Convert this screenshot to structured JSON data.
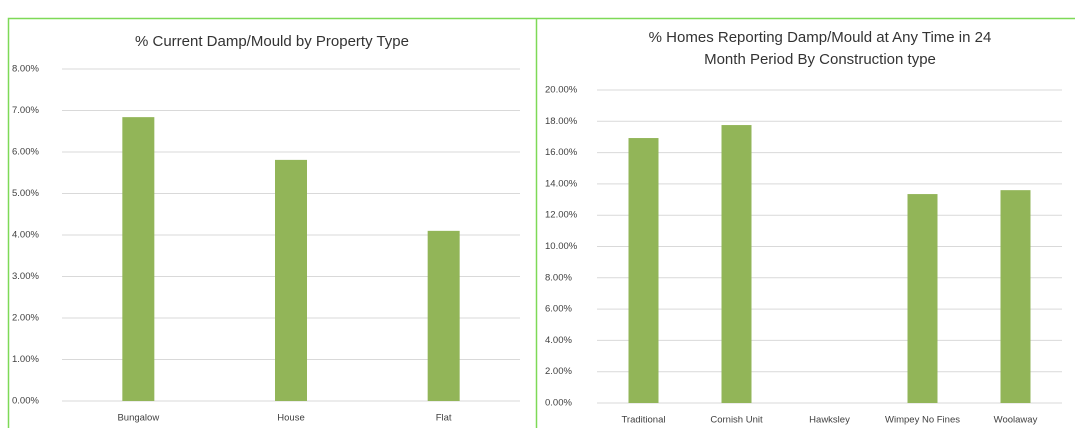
{
  "chart_data": [
    {
      "type": "bar",
      "title": "% Current Damp/Mould by Property Type",
      "categories": [
        "Bungalow",
        "House",
        "Flat"
      ],
      "values": [
        6.84,
        5.81,
        4.1
      ],
      "color": "#92b558",
      "ylim": [
        0,
        8
      ],
      "yticks": [
        {
          "value": 0,
          "label": "0.00%"
        },
        {
          "value": 1,
          "label": "1.00%"
        },
        {
          "value": 2,
          "label": "2.00%"
        },
        {
          "value": 3,
          "label": "3.00%"
        },
        {
          "value": 4,
          "label": "4.00%"
        },
        {
          "value": 5,
          "label": "5.00%"
        },
        {
          "value": 6,
          "label": "6.00%"
        },
        {
          "value": 7,
          "label": "7.00%"
        },
        {
          "value": 8,
          "label": "8.00%"
        }
      ],
      "grid": true
    },
    {
      "type": "bar",
      "title": [
        "% Homes Reporting Damp/Mould at Any Time in 24",
        "Month Period By Construction type"
      ],
      "categories": [
        "Traditional",
        "Cornish Unit",
        "Hawksley",
        "Wimpey No Fines",
        "Woolaway"
      ],
      "values": [
        16.93,
        17.76,
        0,
        13.35,
        13.6
      ],
      "color": "#92b558",
      "ylim": [
        0,
        20
      ],
      "yticks": [
        {
          "value": 0,
          "label": "0.00%"
        },
        {
          "value": 2,
          "label": "2.00%"
        },
        {
          "value": 4,
          "label": "4.00%"
        },
        {
          "value": 6,
          "label": "6.00%"
        },
        {
          "value": 8,
          "label": "8.00%"
        },
        {
          "value": 10,
          "label": "10.00%"
        },
        {
          "value": 12,
          "label": "12.00%"
        },
        {
          "value": 14,
          "label": "14.00%"
        },
        {
          "value": 16,
          "label": "16.00%"
        },
        {
          "value": 18,
          "label": "18.00%"
        },
        {
          "value": 20,
          "label": "20.00%"
        }
      ],
      "grid": true
    }
  ]
}
